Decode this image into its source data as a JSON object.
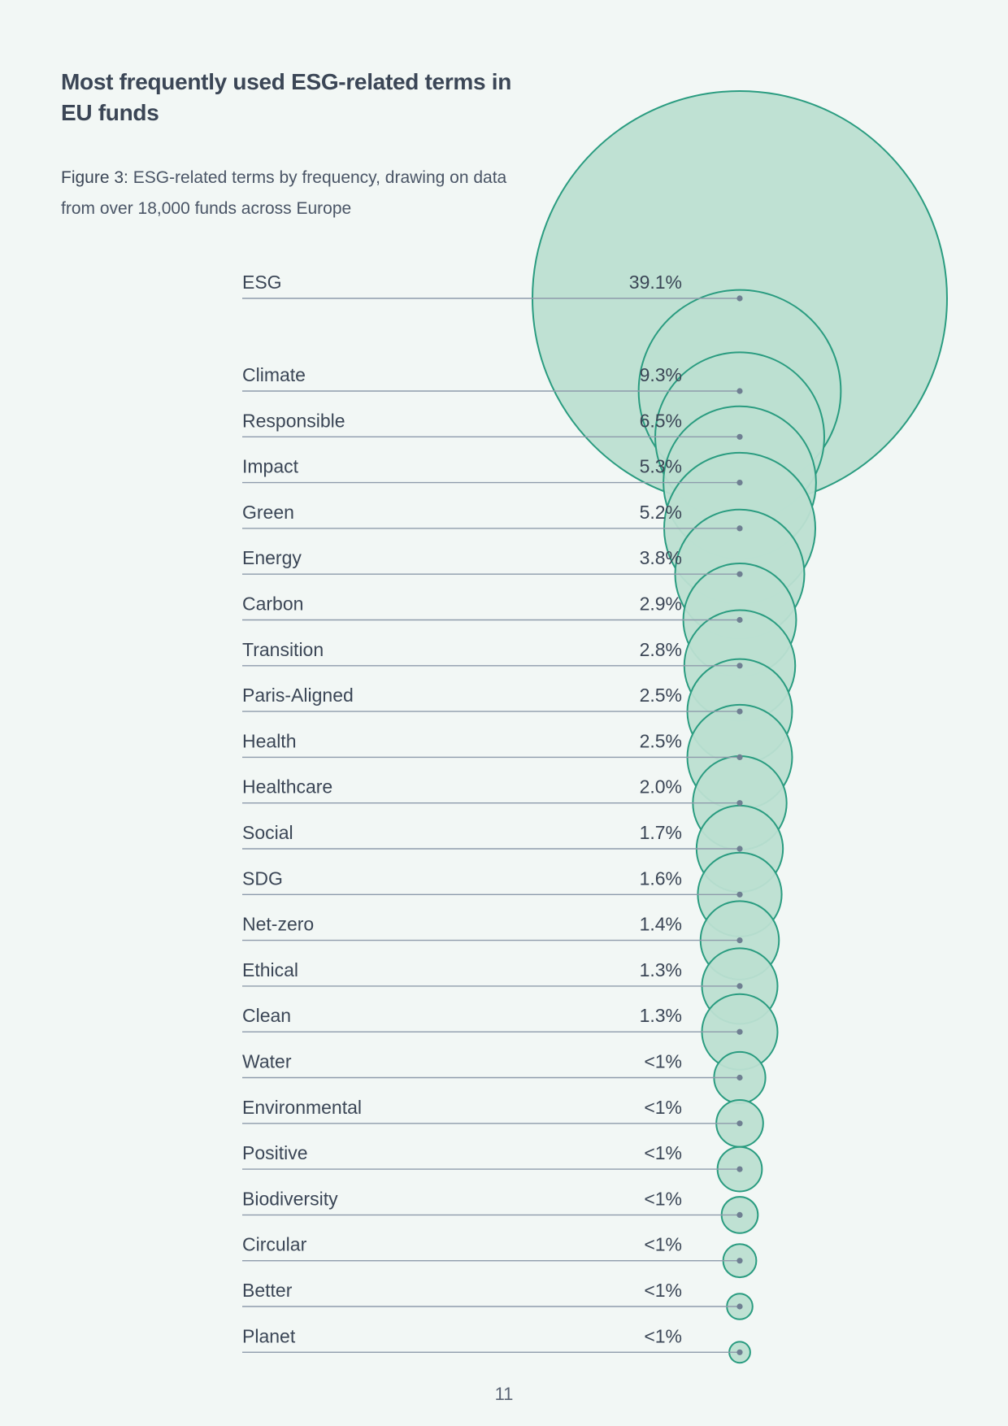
{
  "header": {
    "title": "Most frequently used ESG-related terms in EU funds",
    "subtitle_prefix": "Figure 3:",
    "subtitle_text": "ESG-related terms by frequency, drawing on data from over 18,000 funds across Europe"
  },
  "colors": {
    "bubble_fill": "#bcdfd1",
    "bubble_stroke": "#2a9c80",
    "line": "#8e9bab",
    "dot": "#6f7f92",
    "text": "#3b4656"
  },
  "chart_data": {
    "type": "bubble",
    "title": "Most frequently used ESG-related terms in EU funds",
    "categories": [
      "ESG",
      "Climate",
      "Responsible",
      "Impact",
      "Green",
      "Energy",
      "Carbon",
      "Transition",
      "Paris-Aligned",
      "Health",
      "Healthcare",
      "Social",
      "SDG",
      "Net-zero",
      "Ethical",
      "Clean",
      "Water",
      "Environmental",
      "Positive",
      "Biodiversity",
      "Circular",
      "Better",
      "Planet"
    ],
    "labels": [
      "39.1%",
      "9.3%",
      "6.5%",
      "5.3%",
      "5.2%",
      "3.8%",
      "2.9%",
      "2.8%",
      "2.5%",
      "2.5%",
      "2.0%",
      "1.7%",
      "1.6%",
      "1.4%",
      "1.3%",
      "1.3%",
      "<1%",
      "<1%",
      "<1%",
      "<1%",
      "<1%",
      "<1%",
      "<1%"
    ],
    "values": [
      39.1,
      9.3,
      6.5,
      5.3,
      5.2,
      3.8,
      2.9,
      2.8,
      2.5,
      2.5,
      2.0,
      1.7,
      1.6,
      1.4,
      1.3,
      1.3,
      0.6,
      0.5,
      0.45,
      0.3,
      0.25,
      0.15,
      0.1
    ],
    "unit": "%"
  },
  "footer": {
    "page_number": "11"
  }
}
